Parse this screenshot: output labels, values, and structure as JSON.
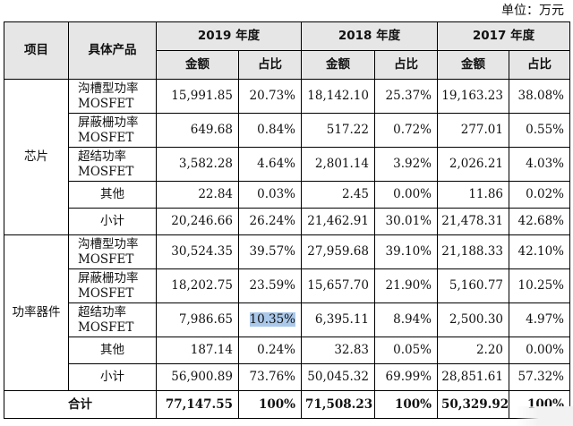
{
  "unit_label": "单位：万元",
  "headers": {
    "item": "项目",
    "product": "具体产品",
    "years": [
      "2019 年度",
      "2018 年度",
      "2017 年度"
    ],
    "amount": "金额",
    "ratio": "占比"
  },
  "groups": [
    {
      "category": "芯片",
      "rows": [
        {
          "product": [
            "沟槽型功率",
            "MOSFET"
          ],
          "v": [
            "15,991.85",
            "20.73%",
            "18,142.10",
            "25.37%",
            "19,163.23",
            "38.08%"
          ]
        },
        {
          "product": [
            "屏蔽栅功率",
            "MOSFET"
          ],
          "v": [
            "649.68",
            "0.84%",
            "517.22",
            "0.72%",
            "277.01",
            "0.55%"
          ]
        },
        {
          "product": [
            "超结功率",
            "MOSFET"
          ],
          "v": [
            "3,582.28",
            "4.64%",
            "2,801.14",
            "3.92%",
            "2,026.21",
            "4.03%"
          ]
        },
        {
          "product": [
            "其他",
            ""
          ],
          "v": [
            "22.84",
            "0.03%",
            "2.45",
            "0.00%",
            "11.86",
            "0.02%"
          ]
        },
        {
          "product": [
            "小计",
            ""
          ],
          "v": [
            "20,246.66",
            "26.24%",
            "21,462.91",
            "30.01%",
            "21,478.31",
            "42.68%"
          ]
        }
      ]
    },
    {
      "category": "功率器件",
      "rows": [
        {
          "product": [
            "沟槽型功率",
            "MOSFET"
          ],
          "v": [
            "30,524.35",
            "39.57%",
            "27,959.68",
            "39.10%",
            "21,188.33",
            "42.10%"
          ]
        },
        {
          "product": [
            "屏蔽栅功率",
            "MOSFET"
          ],
          "v": [
            "18,202.75",
            "23.59%",
            "15,657.70",
            "21.90%",
            "5,160.77",
            "10.25%"
          ]
        },
        {
          "product": [
            "超结功率",
            "MOSFET"
          ],
          "v": [
            "7,986.65",
            "10.35%",
            "6,395.11",
            "8.94%",
            "2,500.30",
            "4.97%"
          ]
        },
        {
          "product": [
            "其他",
            ""
          ],
          "v": [
            "187.14",
            "0.24%",
            "32.83",
            "0.05%",
            "2.20",
            "0.00%"
          ]
        },
        {
          "product": [
            "小计",
            ""
          ],
          "v": [
            "56,900.89",
            "73.76%",
            "50,045.32",
            "69.99%",
            "28,851.61",
            "57.32%"
          ]
        }
      ]
    }
  ],
  "total": {
    "label": "合计",
    "v": [
      "77,147.55",
      "100%",
      "71,508.23",
      "100%",
      "50,329.92",
      "100%"
    ]
  }
}
